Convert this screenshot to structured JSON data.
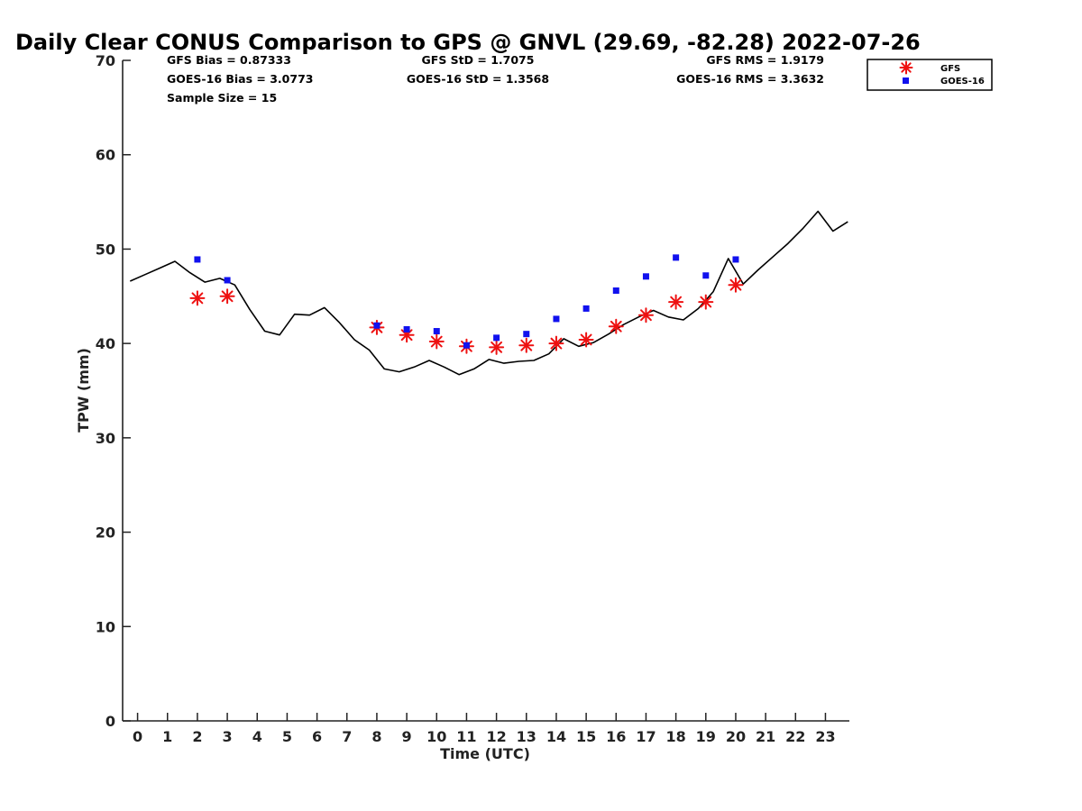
{
  "chart_data": {
    "type": "line",
    "title": "Daily Clear CONUS Comparison to GPS @ GNVL (29.69, -82.28) 2022-07-26",
    "xlabel": "Time (UTC)",
    "ylabel": "TPW (mm)",
    "xlim": [
      -0.5,
      23.8
    ],
    "ylim": [
      0,
      70
    ],
    "xticks": [
      0,
      1,
      2,
      3,
      4,
      5,
      6,
      7,
      8,
      9,
      10,
      11,
      12,
      13,
      14,
      15,
      16,
      17,
      18,
      19,
      20,
      21,
      22,
      23
    ],
    "yticks": [
      0,
      10,
      20,
      30,
      40,
      50,
      60,
      70
    ],
    "grid": false,
    "legend_position": "top-right",
    "stats": {
      "gfs_bias": "GFS Bias = 0.87333",
      "goes_bias": "GOES-16 Bias = 3.0773",
      "sample_size": "Sample Size = 15",
      "gfs_std": "GFS StD = 1.7075",
      "goes_std": "GOES-16 StD = 1.3568",
      "gfs_rms": "GFS RMS = 1.9179",
      "goes_rms": "GOES-16 RMS = 3.3632"
    },
    "series": [
      {
        "name": "",
        "kind": "line",
        "color": "#000000",
        "x": [
          -0.25,
          0.25,
          0.75,
          1.25,
          1.75,
          2.25,
          2.75,
          3.25,
          3.75,
          4.25,
          4.75,
          5.25,
          5.75,
          6.25,
          6.75,
          7.25,
          7.75,
          8.25,
          8.75,
          9.25,
          9.75,
          10.25,
          10.75,
          11.25,
          11.75,
          12.25,
          12.75,
          13.25,
          13.75,
          14.25,
          14.75,
          15.25,
          15.75,
          16.25,
          16.75,
          17.25,
          17.75,
          18.25,
          18.75,
          19.25,
          19.75,
          20.25,
          20.75,
          21.25,
          21.75,
          22.25,
          22.75,
          23.25,
          23.75
        ],
        "y": [
          46.6,
          47.3,
          48.0,
          48.7,
          47.5,
          46.5,
          46.9,
          46.2,
          43.6,
          41.3,
          40.9,
          43.1,
          43.0,
          43.8,
          42.2,
          40.4,
          39.3,
          37.3,
          37.0,
          37.5,
          38.2,
          37.5,
          36.7,
          37.3,
          38.3,
          37.9,
          38.1,
          38.2,
          38.9,
          40.5,
          39.7,
          40.1,
          41.0,
          42.0,
          42.8,
          43.5,
          42.8,
          42.5,
          43.7,
          45.5,
          49.0,
          46.3,
          47.8,
          49.2,
          50.6,
          52.2,
          54.0,
          51.9,
          52.9
        ]
      },
      {
        "name": "GFS",
        "kind": "scatter",
        "marker": "asterisk",
        "color": "#ee1111",
        "x": [
          2,
          3,
          8,
          9,
          10,
          11,
          12,
          13,
          14,
          15,
          16,
          17,
          18,
          19,
          20
        ],
        "y": [
          44.8,
          45.0,
          41.7,
          40.9,
          40.2,
          39.7,
          39.6,
          39.8,
          40.0,
          40.4,
          41.8,
          43.0,
          44.4,
          44.4,
          46.2
        ]
      },
      {
        "name": "GOES-16",
        "kind": "scatter",
        "marker": "square",
        "color": "#1111ee",
        "x": [
          2,
          3,
          8,
          9,
          10,
          11,
          12,
          13,
          14,
          15,
          16,
          17,
          18,
          19,
          20
        ],
        "y": [
          48.9,
          46.7,
          41.9,
          41.5,
          41.3,
          39.8,
          40.6,
          41.0,
          42.6,
          43.7,
          45.6,
          47.1,
          49.1,
          47.2,
          48.9
        ]
      }
    ]
  }
}
